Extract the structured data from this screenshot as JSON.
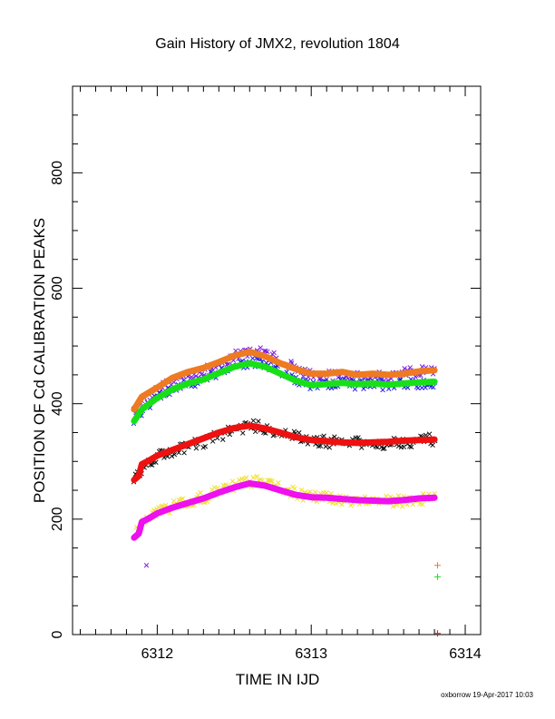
{
  "chart_data": {
    "type": "scatter",
    "title": "Gain History of JMX2, revolution 1804",
    "xlabel": "TIME IN IJD",
    "ylabel": "POSITION OF Cd CALIBRATION PEAKS",
    "xlim": [
      6311.45,
      6314.1
    ],
    "ylim": [
      0,
      950
    ],
    "x_ticks": [
      6312,
      6313,
      6314
    ],
    "y_ticks": [
      0,
      200,
      400,
      600,
      800
    ],
    "grid": false,
    "footer": "oxborrow 19-Apr-2017 10:03",
    "series": [
      {
        "color": "#7b1fe0",
        "marker": "x",
        "line": false,
        "jitter": 9,
        "points": [
          [
            6311.85,
            385
          ],
          [
            6311.9,
            400
          ],
          [
            6311.95,
            412
          ],
          [
            6312.0,
            422
          ],
          [
            6312.1,
            440
          ],
          [
            6312.2,
            450
          ],
          [
            6312.3,
            455
          ],
          [
            6312.4,
            468
          ],
          [
            6312.5,
            482
          ],
          [
            6312.6,
            492
          ],
          [
            6312.7,
            488
          ],
          [
            6312.8,
            475
          ],
          [
            6312.9,
            462
          ],
          [
            6313.0,
            450
          ],
          [
            6313.1,
            448
          ],
          [
            6313.2,
            450
          ],
          [
            6313.3,
            446
          ],
          [
            6313.4,
            450
          ],
          [
            6313.5,
            448
          ],
          [
            6313.6,
            452
          ],
          [
            6313.7,
            456
          ],
          [
            6313.8,
            458
          ]
        ]
      },
      {
        "color": "#7b1fe0",
        "marker": "x",
        "line": false,
        "jitter": 0,
        "points": [
          [
            6311.93,
            120
          ]
        ]
      },
      {
        "color": "#1f1fe0",
        "marker": "x",
        "line": false,
        "jitter": 9,
        "points": [
          [
            6311.85,
            372
          ],
          [
            6311.9,
            388
          ],
          [
            6311.95,
            400
          ],
          [
            6312.0,
            410
          ],
          [
            6312.1,
            425
          ],
          [
            6312.2,
            435
          ],
          [
            6312.3,
            442
          ],
          [
            6312.4,
            455
          ],
          [
            6312.5,
            465
          ],
          [
            6312.6,
            472
          ],
          [
            6312.7,
            468
          ],
          [
            6312.8,
            455
          ],
          [
            6312.9,
            440
          ],
          [
            6313.0,
            430
          ],
          [
            6313.1,
            432
          ],
          [
            6313.2,
            435
          ],
          [
            6313.3,
            432
          ],
          [
            6313.4,
            434
          ],
          [
            6313.5,
            432
          ],
          [
            6313.6,
            434
          ],
          [
            6313.7,
            436
          ],
          [
            6313.8,
            435
          ]
        ]
      },
      {
        "color": "#111111",
        "marker": "x",
        "line": false,
        "jitter": 10,
        "points": [
          [
            6311.85,
            268
          ],
          [
            6311.9,
            285
          ],
          [
            6311.95,
            300
          ],
          [
            6312.0,
            310
          ],
          [
            6312.1,
            318
          ],
          [
            6312.2,
            326
          ],
          [
            6312.3,
            334
          ],
          [
            6312.4,
            345
          ],
          [
            6312.5,
            355
          ],
          [
            6312.6,
            362
          ],
          [
            6312.7,
            358
          ],
          [
            6312.8,
            350
          ],
          [
            6312.9,
            342
          ],
          [
            6313.0,
            336
          ],
          [
            6313.1,
            334
          ],
          [
            6313.2,
            333
          ],
          [
            6313.3,
            332
          ],
          [
            6313.4,
            330
          ],
          [
            6313.5,
            332
          ],
          [
            6313.6,
            334
          ],
          [
            6313.7,
            336
          ],
          [
            6313.8,
            338
          ]
        ]
      },
      {
        "color": "#f0e030",
        "marker": "x",
        "line": false,
        "jitter": 10,
        "points": [
          [
            6311.85,
            170
          ],
          [
            6311.9,
            190
          ],
          [
            6311.95,
            200
          ],
          [
            6312.0,
            210
          ],
          [
            6312.1,
            222
          ],
          [
            6312.2,
            230
          ],
          [
            6312.3,
            238
          ],
          [
            6312.4,
            248
          ],
          [
            6312.5,
            258
          ],
          [
            6312.6,
            266
          ],
          [
            6312.7,
            262
          ],
          [
            6312.8,
            255
          ],
          [
            6312.9,
            245
          ],
          [
            6313.0,
            238
          ],
          [
            6313.1,
            236
          ],
          [
            6313.2,
            235
          ],
          [
            6313.3,
            232
          ],
          [
            6313.4,
            232
          ],
          [
            6313.5,
            230
          ],
          [
            6313.6,
            232
          ],
          [
            6313.7,
            235
          ],
          [
            6313.8,
            237
          ]
        ]
      },
      {
        "color": "#ee7a22",
        "marker": "line",
        "line": true,
        "jitter": 0,
        "points": [
          [
            6311.85,
            390
          ],
          [
            6311.9,
            412
          ],
          [
            6311.95,
            420
          ],
          [
            6312.0,
            428
          ],
          [
            6312.1,
            445
          ],
          [
            6312.2,
            455
          ],
          [
            6312.3,
            462
          ],
          [
            6312.4,
            472
          ],
          [
            6312.5,
            483
          ],
          [
            6312.6,
            490
          ],
          [
            6312.7,
            482
          ],
          [
            6312.8,
            470
          ],
          [
            6312.9,
            460
          ],
          [
            6313.0,
            452
          ],
          [
            6313.1,
            452
          ],
          [
            6313.2,
            455
          ],
          [
            6313.3,
            450
          ],
          [
            6313.4,
            452
          ],
          [
            6313.5,
            450
          ],
          [
            6313.6,
            452
          ],
          [
            6313.7,
            456
          ],
          [
            6313.8,
            458
          ]
        ]
      },
      {
        "color": "#18e018",
        "marker": "line",
        "line": true,
        "jitter": 0,
        "points": [
          [
            6311.85,
            370
          ],
          [
            6311.9,
            390
          ],
          [
            6311.95,
            400
          ],
          [
            6312.0,
            410
          ],
          [
            6312.1,
            425
          ],
          [
            6312.2,
            435
          ],
          [
            6312.3,
            442
          ],
          [
            6312.4,
            453
          ],
          [
            6312.5,
            464
          ],
          [
            6312.6,
            470
          ],
          [
            6312.7,
            464
          ],
          [
            6312.8,
            452
          ],
          [
            6312.9,
            440
          ],
          [
            6313.0,
            432
          ],
          [
            6313.1,
            434
          ],
          [
            6313.2,
            436
          ],
          [
            6313.3,
            434
          ],
          [
            6313.4,
            435
          ],
          [
            6313.5,
            433
          ],
          [
            6313.6,
            435
          ],
          [
            6313.7,
            437
          ],
          [
            6313.8,
            438
          ]
        ]
      },
      {
        "color": "#ee1111",
        "marker": "line",
        "line": true,
        "jitter": 0,
        "points": [
          [
            6311.85,
            268
          ],
          [
            6311.88,
            275
          ],
          [
            6311.9,
            295
          ],
          [
            6311.95,
            302
          ],
          [
            6312.0,
            310
          ],
          [
            6312.1,
            320
          ],
          [
            6312.2,
            330
          ],
          [
            6312.3,
            340
          ],
          [
            6312.4,
            350
          ],
          [
            6312.5,
            358
          ],
          [
            6312.6,
            362
          ],
          [
            6312.7,
            357
          ],
          [
            6312.8,
            350
          ],
          [
            6312.9,
            342
          ],
          [
            6313.0,
            337
          ],
          [
            6313.1,
            335
          ],
          [
            6313.2,
            333
          ],
          [
            6313.3,
            332
          ],
          [
            6313.4,
            333
          ],
          [
            6313.5,
            334
          ],
          [
            6313.6,
            336
          ],
          [
            6313.7,
            337
          ],
          [
            6313.8,
            338
          ]
        ]
      },
      {
        "color": "#ee10ee",
        "marker": "line",
        "line": true,
        "jitter": 0,
        "points": [
          [
            6311.85,
            168
          ],
          [
            6311.88,
            175
          ],
          [
            6311.9,
            195
          ],
          [
            6311.95,
            202
          ],
          [
            6312.0,
            210
          ],
          [
            6312.1,
            220
          ],
          [
            6312.2,
            228
          ],
          [
            6312.3,
            236
          ],
          [
            6312.4,
            246
          ],
          [
            6312.5,
            255
          ],
          [
            6312.6,
            262
          ],
          [
            6312.7,
            258
          ],
          [
            6312.8,
            250
          ],
          [
            6312.9,
            242
          ],
          [
            6313.0,
            238
          ],
          [
            6313.1,
            237
          ],
          [
            6313.2,
            235
          ],
          [
            6313.3,
            233
          ],
          [
            6313.4,
            232
          ],
          [
            6313.5,
            231
          ],
          [
            6313.6,
            233
          ],
          [
            6313.7,
            236
          ],
          [
            6313.8,
            237
          ]
        ]
      },
      {
        "color": "#ee7a22",
        "marker": "plus",
        "line": false,
        "jitter": 0,
        "points": [
          [
            6313.82,
            120
          ]
        ]
      },
      {
        "color": "#18e018",
        "marker": "plus",
        "line": false,
        "jitter": 0,
        "points": [
          [
            6313.82,
            100
          ]
        ]
      },
      {
        "color": "#ee1111",
        "marker": "plus",
        "line": false,
        "jitter": 0,
        "points": [
          [
            6313.82,
            2
          ]
        ]
      }
    ]
  }
}
